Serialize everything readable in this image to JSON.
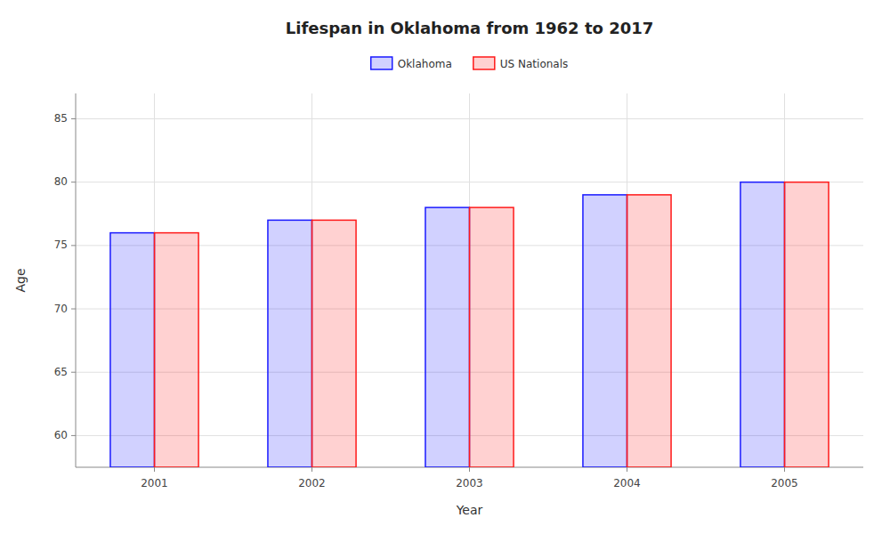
{
  "chart_data": {
    "type": "bar",
    "title": "Lifespan in Oklahoma from 1962 to 2017",
    "xlabel": "Year",
    "ylabel": "Age",
    "categories": [
      "2001",
      "2002",
      "2003",
      "2004",
      "2005"
    ],
    "series": [
      {
        "name": "Oklahoma",
        "color": "#1a1aff",
        "values": [
          76,
          77,
          78,
          79,
          80
        ]
      },
      {
        "name": "US Nationals",
        "color": "#ff1a1a",
        "values": [
          76,
          77,
          78,
          79,
          80
        ]
      }
    ],
    "ylim": [
      57.5,
      87
    ],
    "yticks": [
      60,
      65,
      70,
      75,
      80,
      85
    ],
    "grid": true,
    "legend": "top"
  }
}
